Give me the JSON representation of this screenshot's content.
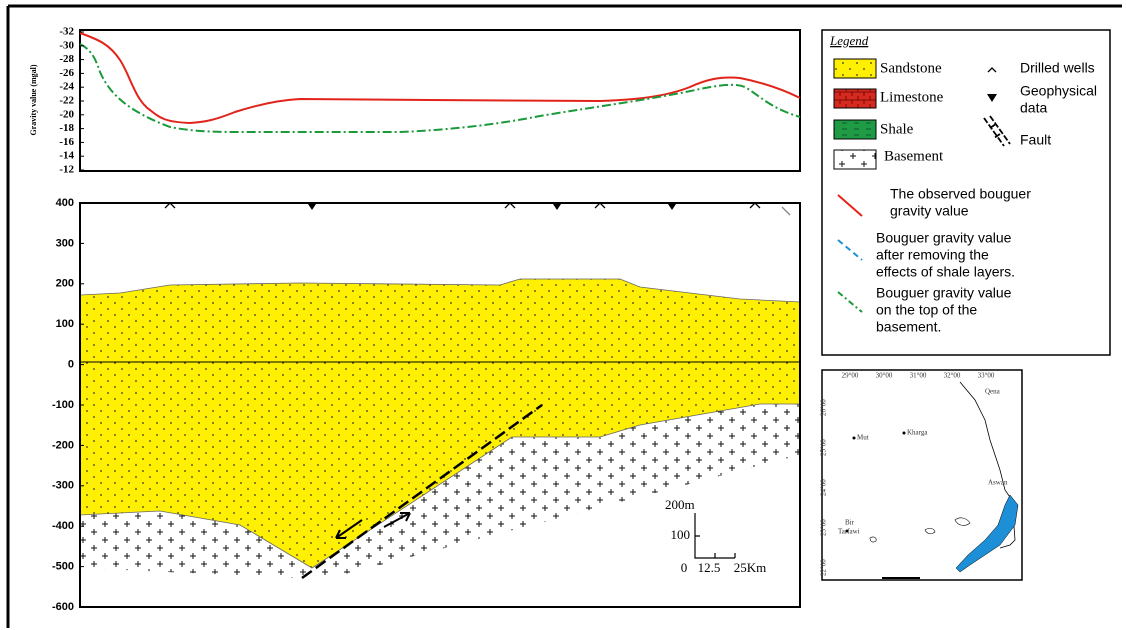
{
  "gravity_profile": {
    "y_label": "Gravity value (mgal)",
    "yticks": [
      -32,
      -30,
      -28,
      -26,
      -24,
      -22,
      -20,
      -18,
      -16,
      -14,
      -12
    ]
  },
  "cross_section": {
    "yticks": [
      400,
      300,
      200,
      100,
      0,
      -100,
      -200,
      -300,
      -400,
      -500,
      -600
    ],
    "scale_bar": {
      "vertical_top": "200m",
      "vertical_mid": "100",
      "origin": "0",
      "horizontal_mid": "12.5",
      "horizontal_end": "25Km"
    }
  },
  "legend": {
    "title": "Legend",
    "units": [
      "Sandstone",
      "Limestone",
      "Shale",
      "Basement"
    ],
    "symbols": {
      "wells": "Drilled wells",
      "geophysical": [
        "Geophysical",
        "data"
      ],
      "fault": "Fault"
    },
    "curves": [
      [
        "The observed bouguer",
        "gravity value"
      ],
      [
        "Bouguer gravity value",
        "after removing the",
        "effects of shale layers."
      ],
      [
        "Bouguer gravity value",
        "on the top of the",
        "basement."
      ]
    ]
  },
  "map": {
    "longitudes": [
      "29°00",
      "30°00",
      "31°00",
      "32°00",
      "33°00"
    ],
    "latitudes": [
      "26°00",
      "25°00",
      "24°00",
      "23°00",
      "22°00"
    ],
    "places": [
      "Qena",
      "Kharga",
      "Mut",
      "Aswan",
      "Bir",
      "Tarfawi"
    ]
  }
}
